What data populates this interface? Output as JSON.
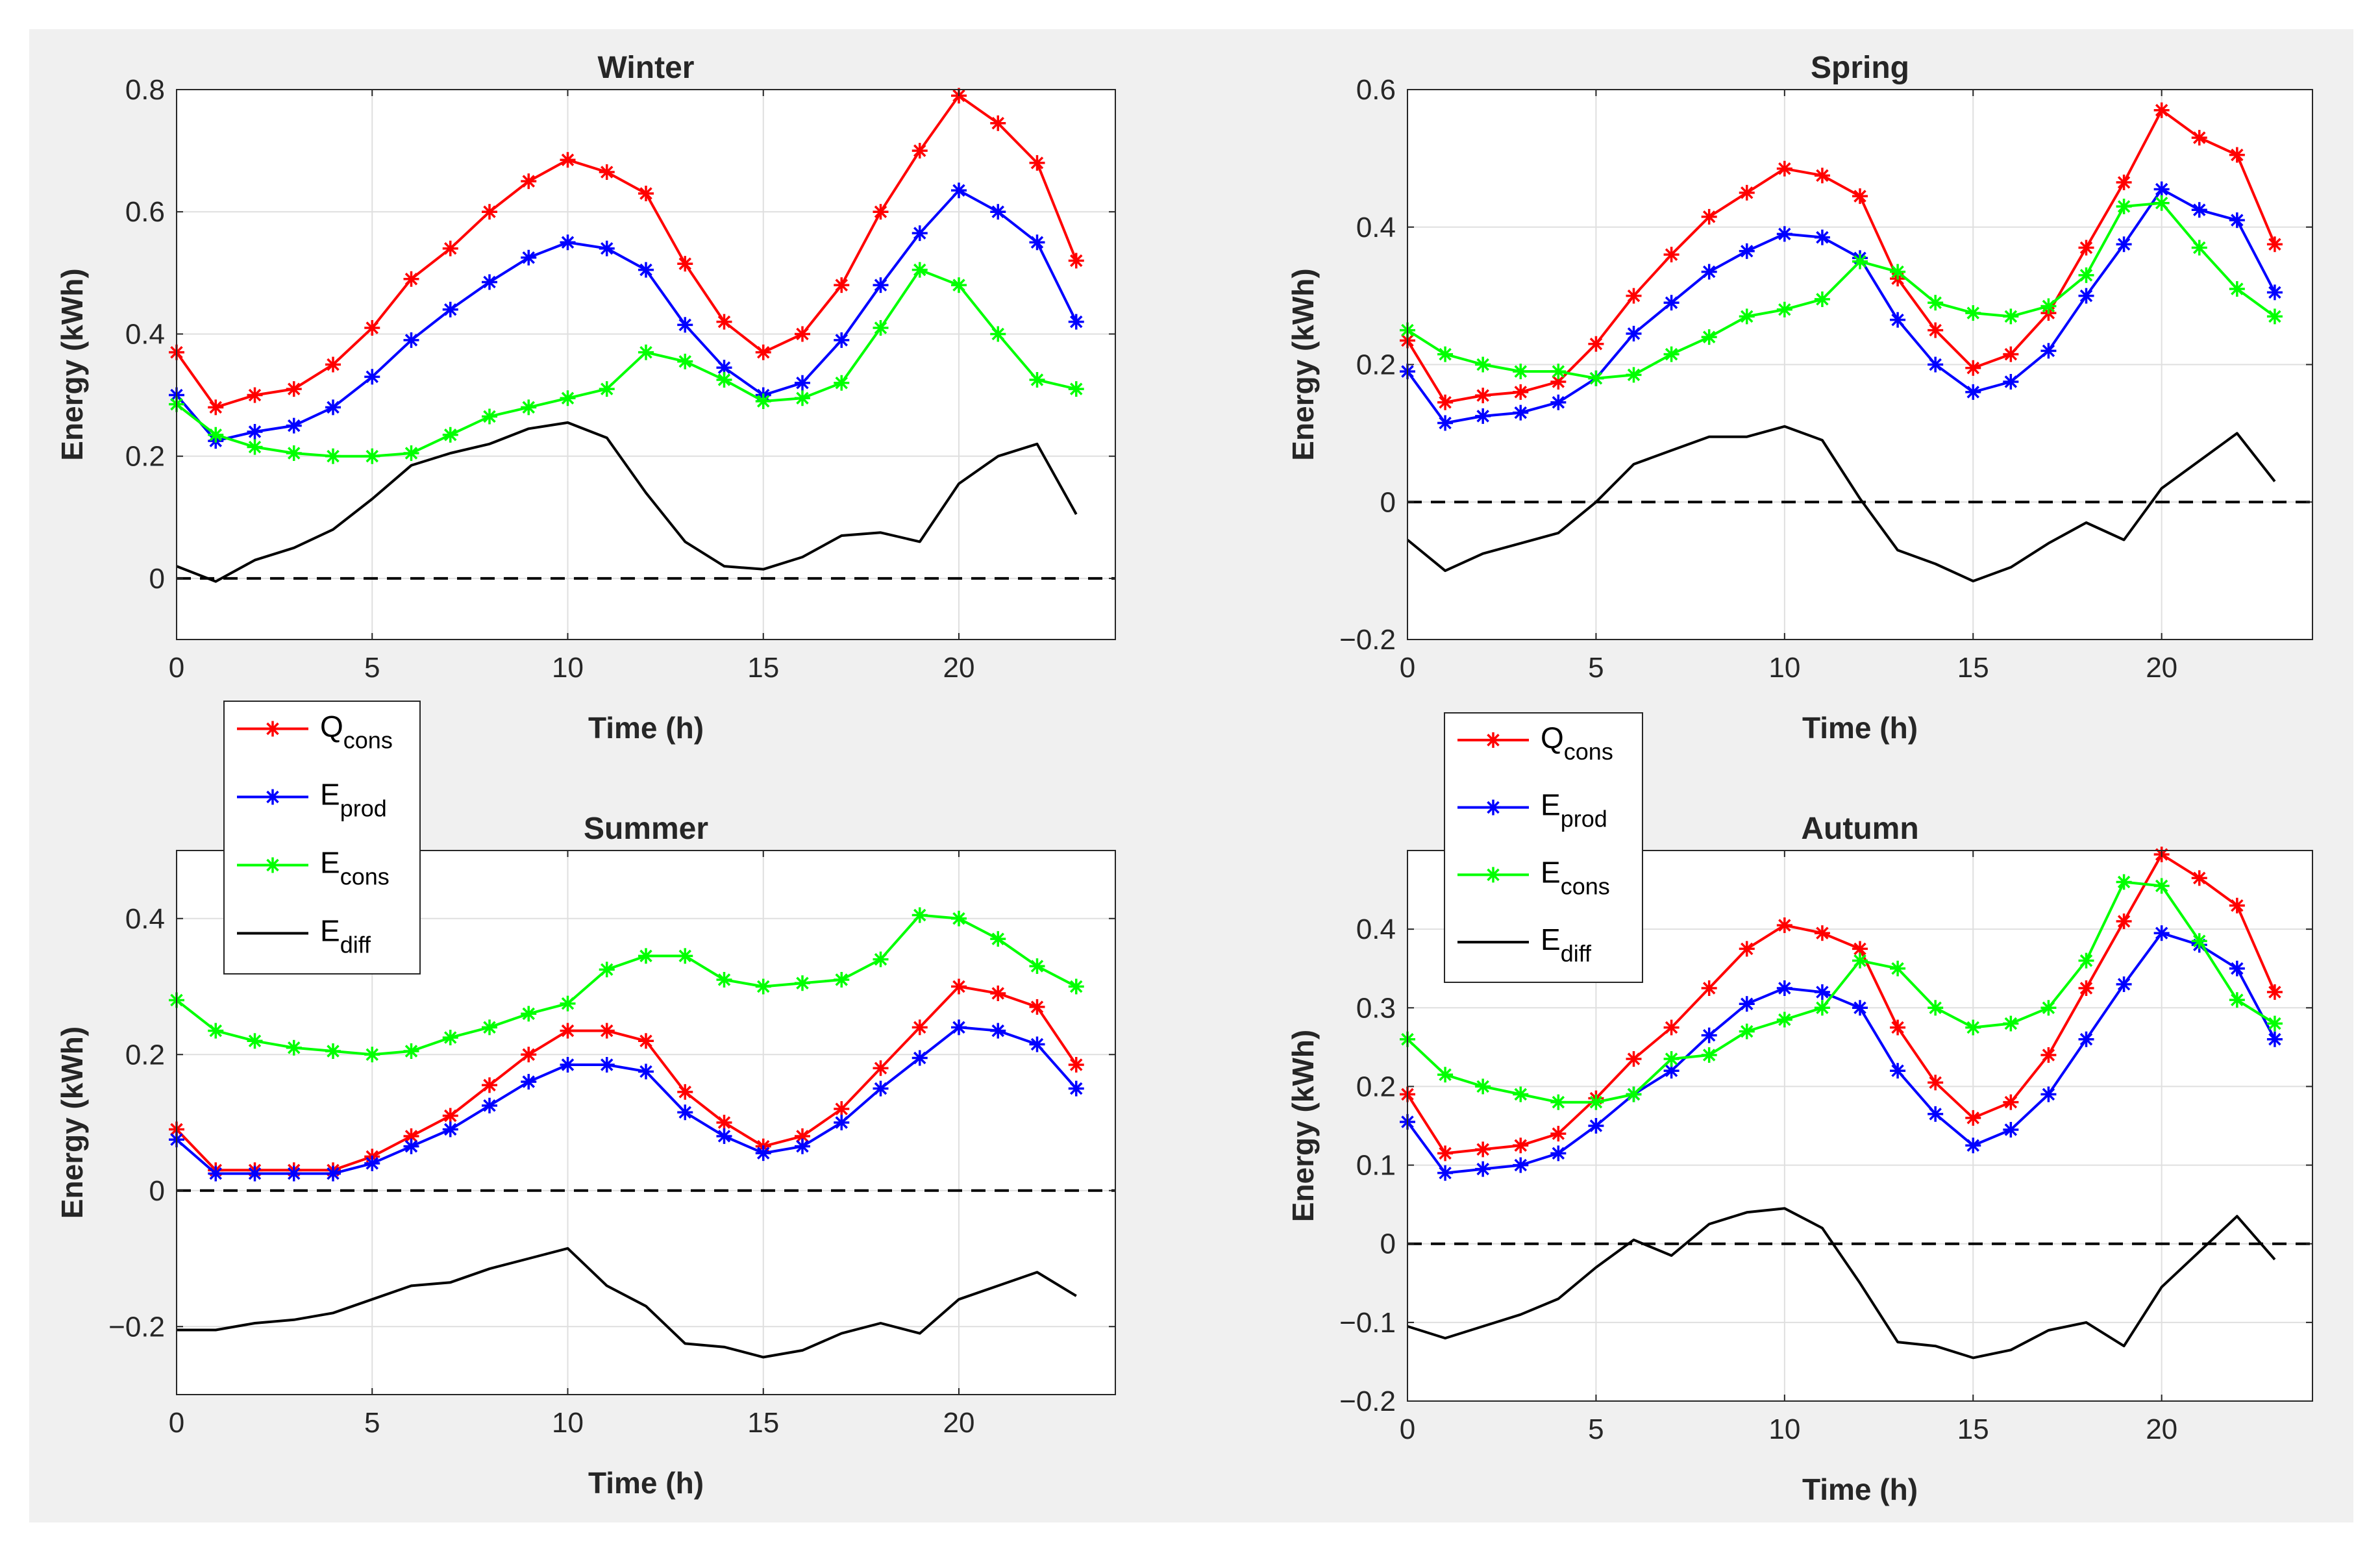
{
  "colors": {
    "Q_cons": "#ff0000",
    "E_prod": "#0000ff",
    "E_cons": "#00ff00",
    "E_diff": "#000000",
    "background": "#f0f0f0",
    "axes": "#ffffff",
    "grid": "#dfdfdf"
  },
  "chart_data": [
    {
      "type": "line",
      "title": "Winter",
      "xlabel": "Time (h)",
      "ylabel": "Energy (kWh)",
      "xlim": [
        0,
        24
      ],
      "ylim": [
        -0.1,
        0.8
      ],
      "xticks": [
        0,
        5,
        10,
        15,
        20
      ],
      "yticks": [
        0,
        0.2,
        0.4,
        0.6,
        0.8
      ],
      "xtick_labels": [
        "0",
        "5",
        "10",
        "15",
        "20"
      ],
      "ytick_labels": [
        "0",
        "0.2",
        "0.4",
        "0.6",
        "0.8"
      ],
      "grid": true,
      "x": [
        0,
        1,
        2,
        3,
        4,
        5,
        6,
        7,
        8,
        9,
        10,
        11,
        12,
        13,
        14,
        15,
        16,
        17,
        18,
        19,
        20,
        21,
        22,
        23
      ],
      "series": [
        {
          "name": "Q_cons",
          "values": [
            0.37,
            0.28,
            0.3,
            0.31,
            0.35,
            0.41,
            0.49,
            0.54,
            0.6,
            0.65,
            0.685,
            0.665,
            0.63,
            0.515,
            0.42,
            0.37,
            0.4,
            0.48,
            0.6,
            0.7,
            0.79,
            0.745,
            0.68,
            0.52
          ]
        },
        {
          "name": "E_prod",
          "values": [
            0.3,
            0.225,
            0.24,
            0.25,
            0.28,
            0.33,
            0.39,
            0.44,
            0.485,
            0.525,
            0.55,
            0.54,
            0.505,
            0.415,
            0.345,
            0.3,
            0.32,
            0.39,
            0.48,
            0.565,
            0.635,
            0.6,
            0.55,
            0.42
          ]
        },
        {
          "name": "E_cons",
          "values": [
            0.285,
            0.235,
            0.215,
            0.205,
            0.2,
            0.2,
            0.205,
            0.235,
            0.265,
            0.28,
            0.295,
            0.31,
            0.37,
            0.355,
            0.325,
            0.29,
            0.295,
            0.32,
            0.41,
            0.505,
            0.48,
            0.4,
            0.325,
            0.31
          ]
        },
        {
          "name": "E_diff",
          "values": [
            0.02,
            -0.005,
            0.03,
            0.05,
            0.08,
            0.13,
            0.185,
            0.205,
            0.22,
            0.245,
            0.255,
            0.23,
            0.14,
            0.06,
            0.02,
            0.015,
            0.035,
            0.07,
            0.075,
            0.06,
            0.155,
            0.2,
            0.22,
            0.105
          ]
        }
      ],
      "zero_line": true
    },
    {
      "type": "line",
      "title": "Spring",
      "xlabel": "Time (h)",
      "ylabel": "Energy (kWh)",
      "xlim": [
        0,
        24
      ],
      "ylim": [
        -0.2,
        0.6
      ],
      "xticks": [
        0,
        5,
        10,
        15,
        20
      ],
      "yticks": [
        -0.2,
        0,
        0.2,
        0.4,
        0.6
      ],
      "xtick_labels": [
        "0",
        "5",
        "10",
        "15",
        "20"
      ],
      "ytick_labels": [
        "−0.2",
        "0",
        "0.2",
        "0.4",
        "0.6"
      ],
      "grid": true,
      "x": [
        0,
        1,
        2,
        3,
        4,
        5,
        6,
        7,
        8,
        9,
        10,
        11,
        12,
        13,
        14,
        15,
        16,
        17,
        18,
        19,
        20,
        21,
        22,
        23
      ],
      "series": [
        {
          "name": "Q_cons",
          "values": [
            0.235,
            0.145,
            0.155,
            0.16,
            0.175,
            0.23,
            0.3,
            0.36,
            0.415,
            0.45,
            0.485,
            0.475,
            0.445,
            0.325,
            0.25,
            0.195,
            0.215,
            0.275,
            0.37,
            0.465,
            0.57,
            0.53,
            0.505,
            0.375
          ]
        },
        {
          "name": "E_prod",
          "values": [
            0.19,
            0.115,
            0.125,
            0.13,
            0.145,
            0.18,
            0.245,
            0.29,
            0.335,
            0.365,
            0.39,
            0.385,
            0.355,
            0.265,
            0.2,
            0.16,
            0.175,
            0.22,
            0.3,
            0.375,
            0.455,
            0.425,
            0.41,
            0.305
          ]
        },
        {
          "name": "E_cons",
          "values": [
            0.25,
            0.215,
            0.2,
            0.19,
            0.19,
            0.18,
            0.185,
            0.215,
            0.24,
            0.27,
            0.28,
            0.295,
            0.35,
            0.335,
            0.29,
            0.275,
            0.27,
            0.285,
            0.33,
            0.43,
            0.435,
            0.37,
            0.31,
            0.27
          ]
        },
        {
          "name": "E_diff",
          "values": [
            -0.055,
            -0.1,
            -0.075,
            -0.06,
            -0.045,
            0.0,
            0.055,
            0.075,
            0.095,
            0.095,
            0.11,
            0.09,
            0.005,
            -0.07,
            -0.09,
            -0.115,
            -0.095,
            -0.06,
            -0.03,
            -0.055,
            0.02,
            0.06,
            0.1,
            0.03
          ]
        }
      ],
      "zero_line": true
    },
    {
      "type": "line",
      "title": "Summer",
      "xlabel": "Time (h)",
      "ylabel": "Energy (kWh)",
      "xlim": [
        0,
        24
      ],
      "ylim": [
        -0.3,
        0.5
      ],
      "xticks": [
        0,
        5,
        10,
        15,
        20
      ],
      "yticks": [
        -0.2,
        0,
        0.2,
        0.4
      ],
      "xtick_labels": [
        "0",
        "5",
        "10",
        "15",
        "20"
      ],
      "ytick_labels": [
        "−0.2",
        "0",
        "0.2",
        "0.4"
      ],
      "grid": true,
      "x": [
        0,
        1,
        2,
        3,
        4,
        5,
        6,
        7,
        8,
        9,
        10,
        11,
        12,
        13,
        14,
        15,
        16,
        17,
        18,
        19,
        20,
        21,
        22,
        23
      ],
      "series": [
        {
          "name": "Q_cons",
          "values": [
            0.09,
            0.03,
            0.03,
            0.03,
            0.03,
            0.05,
            0.08,
            0.11,
            0.155,
            0.2,
            0.235,
            0.235,
            0.22,
            0.145,
            0.1,
            0.065,
            0.08,
            0.12,
            0.18,
            0.24,
            0.3,
            0.29,
            0.27,
            0.185
          ]
        },
        {
          "name": "E_prod",
          "values": [
            0.075,
            0.025,
            0.025,
            0.025,
            0.025,
            0.04,
            0.065,
            0.09,
            0.125,
            0.16,
            0.185,
            0.185,
            0.175,
            0.115,
            0.08,
            0.055,
            0.065,
            0.1,
            0.15,
            0.195,
            0.24,
            0.235,
            0.215,
            0.15
          ]
        },
        {
          "name": "E_cons",
          "values": [
            0.28,
            0.235,
            0.22,
            0.21,
            0.205,
            0.2,
            0.205,
            0.225,
            0.24,
            0.26,
            0.275,
            0.325,
            0.345,
            0.345,
            0.31,
            0.3,
            0.305,
            0.31,
            0.34,
            0.405,
            0.4,
            0.37,
            0.33,
            0.3
          ]
        },
        {
          "name": "E_diff",
          "values": [
            -0.205,
            -0.205,
            -0.195,
            -0.19,
            -0.18,
            -0.16,
            -0.14,
            -0.135,
            -0.115,
            -0.1,
            -0.085,
            -0.14,
            -0.17,
            -0.225,
            -0.23,
            -0.245,
            -0.235,
            -0.21,
            -0.195,
            -0.21,
            -0.16,
            -0.14,
            -0.12,
            -0.155
          ]
        }
      ],
      "zero_line": true
    },
    {
      "type": "line",
      "title": "Autumn",
      "xlabel": "Time (h)",
      "ylabel": "Energy (kWh)",
      "xlim": [
        0,
        24
      ],
      "ylim": [
        -0.2,
        0.5
      ],
      "xticks": [
        0,
        5,
        10,
        15,
        20
      ],
      "yticks": [
        -0.2,
        -0.1,
        0,
        0.1,
        0.2,
        0.3,
        0.4
      ],
      "xtick_labels": [
        "0",
        "5",
        "10",
        "15",
        "20"
      ],
      "ytick_labels": [
        "−0.2",
        "−0.1",
        "0",
        "0.1",
        "0.2",
        "0.3",
        "0.4"
      ],
      "grid": true,
      "x": [
        0,
        1,
        2,
        3,
        4,
        5,
        6,
        7,
        8,
        9,
        10,
        11,
        12,
        13,
        14,
        15,
        16,
        17,
        18,
        19,
        20,
        21,
        22,
        23
      ],
      "series": [
        {
          "name": "Q_cons",
          "values": [
            0.19,
            0.115,
            0.12,
            0.125,
            0.14,
            0.185,
            0.235,
            0.275,
            0.325,
            0.375,
            0.405,
            0.395,
            0.375,
            0.275,
            0.205,
            0.16,
            0.18,
            0.24,
            0.325,
            0.41,
            0.495,
            0.465,
            0.43,
            0.32
          ]
        },
        {
          "name": "E_prod",
          "values": [
            0.155,
            0.09,
            0.095,
            0.1,
            0.115,
            0.15,
            0.19,
            0.22,
            0.265,
            0.305,
            0.325,
            0.32,
            0.3,
            0.22,
            0.165,
            0.125,
            0.145,
            0.19,
            0.26,
            0.33,
            0.395,
            0.38,
            0.35,
            0.26
          ]
        },
        {
          "name": "E_cons",
          "values": [
            0.26,
            0.215,
            0.2,
            0.19,
            0.18,
            0.18,
            0.19,
            0.235,
            0.24,
            0.27,
            0.285,
            0.3,
            0.36,
            0.35,
            0.3,
            0.275,
            0.28,
            0.3,
            0.36,
            0.46,
            0.455,
            0.385,
            0.31,
            0.28
          ]
        },
        {
          "name": "E_diff",
          "values": [
            -0.105,
            -0.12,
            -0.105,
            -0.09,
            -0.07,
            -0.03,
            0.005,
            -0.015,
            0.025,
            0.04,
            0.045,
            0.02,
            -0.05,
            -0.125,
            -0.13,
            -0.145,
            -0.135,
            -0.11,
            -0.1,
            -0.13,
            -0.055,
            -0.01,
            0.035,
            -0.02
          ]
        }
      ],
      "zero_line": true
    }
  ],
  "legends": [
    {
      "entries": [
        {
          "main": "Q",
          "sub": "cons",
          "series": "Q_cons"
        },
        {
          "main": "E",
          "sub": "prod",
          "series": "E_prod"
        },
        {
          "main": "E",
          "sub": "cons",
          "series": "E_cons"
        },
        {
          "main": "E",
          "sub": "diff",
          "series": "E_diff"
        }
      ]
    },
    {
      "entries": [
        {
          "main": "Q",
          "sub": "cons",
          "series": "Q_cons"
        },
        {
          "main": "E",
          "sub": "prod",
          "series": "E_prod"
        },
        {
          "main": "E",
          "sub": "cons",
          "series": "E_cons"
        },
        {
          "main": "E",
          "sub": "diff",
          "series": "E_diff"
        }
      ]
    }
  ]
}
